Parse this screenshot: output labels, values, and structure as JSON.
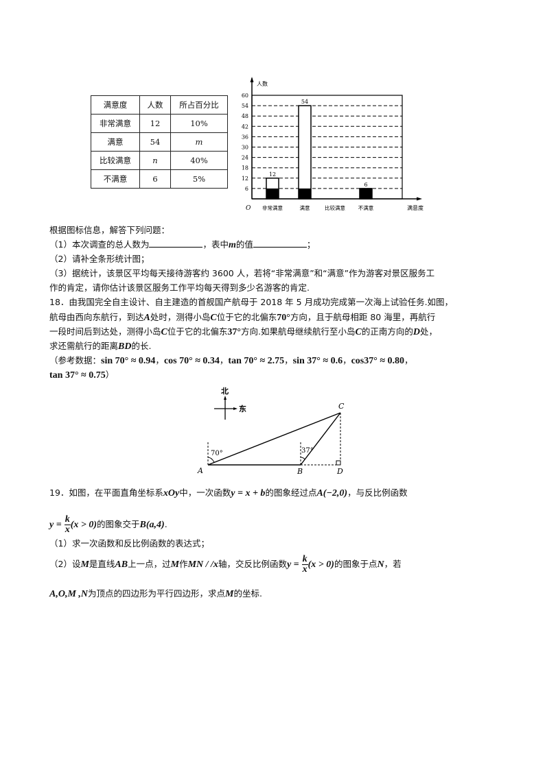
{
  "table": {
    "headers": [
      "满意度",
      "人数",
      "所占百分比"
    ],
    "rows": [
      [
        "非常满意",
        "12",
        "10%"
      ],
      [
        "满意",
        "54",
        "m"
      ],
      [
        "比较满意",
        "n",
        "40%"
      ],
      [
        "不满意",
        "6",
        "5%"
      ]
    ]
  },
  "chart_data": {
    "type": "bar",
    "ylabel": "人数",
    "xlabel": "满意度",
    "origin_label": "O",
    "categories": [
      "非常满意",
      "满意",
      "比较满意",
      "不满意"
    ],
    "values": [
      12,
      54,
      null,
      6
    ],
    "data_labels": [
      "12",
      "54",
      "",
      "6"
    ],
    "yticks": [
      6,
      12,
      18,
      24,
      30,
      36,
      42,
      48,
      54,
      60
    ],
    "ylim": [
      0,
      60
    ],
    "grid": "dashed horizontal",
    "bar_color": "#000000"
  },
  "q17": {
    "intro": "根据图标信息，解答下列问题：",
    "p1_a": "（1）本次调查的总人数为",
    "p1_b": "，表中",
    "p1_m": "m",
    "p1_c": "的值",
    "p1_d": "；",
    "p2": "（2）请补全条形统计图；",
    "p3_line1": "（3）据统计，该景区平均每天接待游客约 3600 人，若将“非常满意”和“满意”作为游客对景区服务工",
    "p3_line2": "作的肯定，请你估计该景区服务工作平均每天得到多少名游客的肯定."
  },
  "q18": {
    "line1": "18．由我国完全自主设计、自主建造的首舰国产航母于 2018 年 5 月成功完成第一次海上试验任务.如图，",
    "line2_a": "航母由西向东航行，到达",
    "A": "A",
    "line2_b": "处时，测得小岛",
    "C": "C",
    "line2_c": "位于它的北偏东",
    "angle1": "70°",
    "line2_d": "方向，且于航母相距 80 海里，再航行",
    "line3_a": "一段时间后到达处，测得小岛",
    "line3_b": "位于它的北偏东",
    "angle2": "37°",
    "line3_c": "方向.如果航母继续航行至小岛",
    "line3_d": "的正南方向的",
    "D": "D",
    "line3_e": "处，",
    "line4_a": "求还需航行的距离",
    "BD": "BD",
    "line4_b": "的长.",
    "ref_a": "（参考数据：",
    "ref1": "sin 70° ≈ 0.94",
    "ref2": "cos 70° ≈ 0.34",
    "ref3": "tan 70° ≈ 2.75",
    "ref4": "sin 37° ≈ 0.6",
    "ref5": "cos37° ≈ 0.80",
    "ref6": "tan 37° ≈ 0.75",
    "ref_end": "）",
    "sep": "，",
    "diagram": {
      "north": "北",
      "east": "东",
      "A": "A",
      "B": "B",
      "C": "C",
      "D": "D",
      "angleA": "70°",
      "angleB": "37°"
    }
  },
  "q19": {
    "line1_a": "19．如图，在平面直角坐标系",
    "xOy": "xOy",
    "line1_b": "中，一次函数",
    "f1": "y = x + b",
    "line1_c": "的图象经过点",
    "ptA": "A(−2,0)",
    "line1_d": "，与反比例函数",
    "y_eq": "y =",
    "k": "k",
    "x": "x",
    "cond": "(x > 0)",
    "line2_a": "的图象交于",
    "ptB": "B(a,4)",
    "dot": ".",
    "p1": "（1）求一次函数和反比例函数的表达式；",
    "p2_a": "（2）设",
    "M": "M",
    "p2_b": "是直线",
    "AB": "AB",
    "p2_c": "上一点，过",
    "p2_d": "作",
    "MN": "MN / /x",
    "p2_e": "轴，交反比例函数",
    "p2_f": "的图象于点",
    "N": "N",
    "p2_g": "，若",
    "p3_pts": "A,O,M ,N",
    "p3_a": "为顶点的四边形为平行四边形，求点",
    "p3_b": "的坐标."
  }
}
